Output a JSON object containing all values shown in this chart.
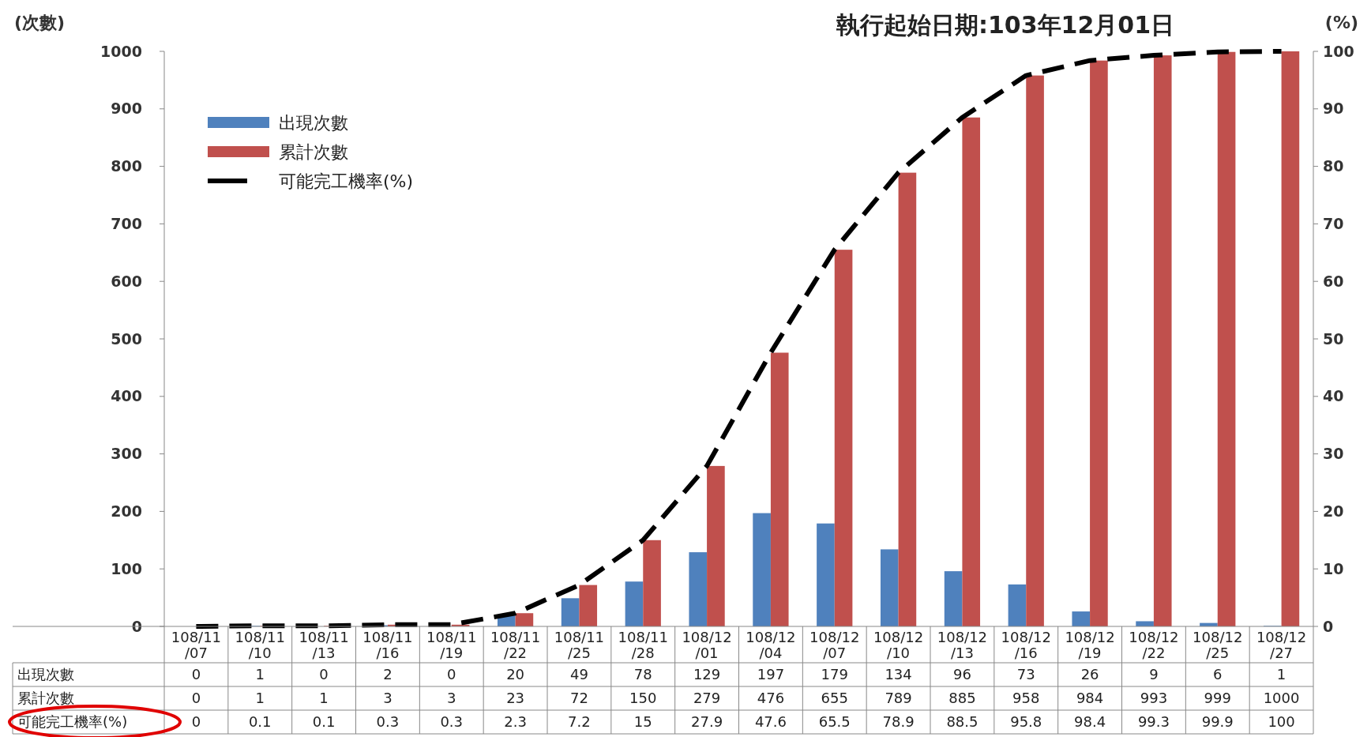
{
  "chart_data": {
    "type": "bar",
    "title": "執行起始日期:103年12月01日",
    "ylabel": "(次數)",
    "y2label": "(%)",
    "categories": [
      "108/11/07",
      "108/11/10",
      "108/11/13",
      "108/11/16",
      "108/11/19",
      "108/11/22",
      "108/11/25",
      "108/11/28",
      "108/12/01",
      "108/12/04",
      "108/12/07",
      "108/12/10",
      "108/12/13",
      "108/12/16",
      "108/12/19",
      "108/12/22",
      "108/12/25",
      "108/12/27"
    ],
    "series": [
      {
        "name": "出現次數",
        "color": "#4f81bd",
        "values": [
          0,
          1,
          0,
          2,
          0,
          20,
          49,
          78,
          129,
          197,
          179,
          134,
          96,
          73,
          26,
          9,
          6,
          1
        ]
      },
      {
        "name": "累計次數",
        "color": "#c0504d",
        "values": [
          0,
          1,
          1,
          3,
          3,
          23,
          72,
          150,
          279,
          476,
          655,
          789,
          885,
          958,
          984,
          993,
          999,
          1000
        ]
      },
      {
        "name": "可能完工機率(%)",
        "type": "line",
        "axis": "y2",
        "color": "#000000",
        "line_style": "dashed",
        "marker": "none",
        "values": [
          0,
          0.1,
          0.1,
          0.3,
          0.3,
          2.3,
          7.2,
          15,
          27.9,
          47.6,
          65.5,
          78.9,
          88.5,
          95.8,
          98.4,
          99.3,
          99.9,
          100
        ]
      }
    ],
    "ylim": [
      0,
      1000
    ],
    "yticks": [
      0,
      100,
      200,
      300,
      400,
      500,
      600,
      700,
      800,
      900,
      1000
    ],
    "y2lim": [
      0,
      100
    ],
    "y2ticks": [
      0,
      10,
      20,
      30,
      40,
      50,
      60,
      70,
      80,
      90,
      100
    ],
    "data_labels": true,
    "legend": "top left",
    "grid": false
  }
}
